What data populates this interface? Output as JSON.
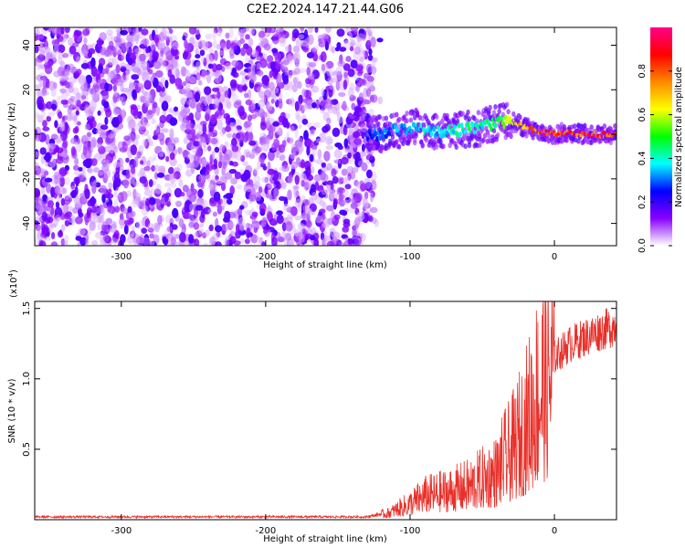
{
  "title": "C2E2.2024.147.21.44.G06",
  "chart_data": [
    {
      "type": "heatmap",
      "description_source": "top panel (spectrogram of occultation signal)",
      "xlabel": "Height of straight line (km)",
      "ylabel": "Frequency (Hz)",
      "xlim": [
        -360,
        43
      ],
      "ylim": [
        -50,
        48
      ],
      "x_ticks": [
        -300,
        -200,
        -100,
        0
      ],
      "y_ticks": [
        -40,
        -20,
        0,
        20,
        40
      ],
      "colorbar": {
        "label": "Normalized spectral amplitude",
        "range": [
          0.0,
          1.0
        ],
        "ticks": [
          0.0,
          0.2,
          0.4,
          0.6,
          0.8
        ],
        "colors": [
          "#ffffff",
          "#8800ff",
          "#0000ff",
          "#00ffff",
          "#00ff00",
          "#ffff00",
          "#ff8800",
          "#ff0000",
          "#ff0088"
        ]
      },
      "noise_region_x": [
        -360,
        -125
      ],
      "signal_ridge": {
        "x": [
          -130,
          -110,
          -95,
          -80,
          -65,
          -50,
          -40,
          -30,
          -20,
          -10,
          0,
          10,
          20,
          30,
          43
        ],
        "frequency": [
          -1,
          2,
          3,
          1,
          2,
          3,
          5,
          6,
          3,
          1,
          0,
          1,
          0,
          0,
          0
        ],
        "amplitude": [
          0.3,
          0.35,
          0.4,
          0.4,
          0.45,
          0.45,
          0.5,
          0.65,
          0.8,
          0.9,
          0.95,
          0.9,
          0.95,
          0.95,
          0.9
        ]
      }
    },
    {
      "type": "line",
      "description_source": "bottom panel",
      "xlabel": "Height of straight line (km)",
      "ylabel": "SNR (10 * v/v)",
      "y_multiplier": "(x10^4)",
      "y_multiplier_base": "(x10",
      "y_multiplier_exp": "4",
      "y_multiplier_close": ")",
      "xlim": [
        -360,
        43
      ],
      "ylim": [
        0,
        1.55
      ],
      "x_ticks": [
        -300,
        -200,
        -100,
        0
      ],
      "y_ticks": [
        0.5,
        1.0,
        1.5
      ],
      "y_tick_labels": [
        "0.5",
        "1.0",
        "1.5"
      ],
      "series": [
        {
          "color": "#e8302a",
          "x": [
            -360,
            -300,
            -200,
            -130,
            -115,
            -100,
            -90,
            -80,
            -70,
            -60,
            -50,
            -40,
            -35,
            -30,
            -25,
            -20,
            -15,
            -10,
            -5,
            0,
            10,
            20,
            30,
            43
          ],
          "y": [
            0.02,
            0.02,
            0.02,
            0.02,
            0.05,
            0.12,
            0.18,
            0.2,
            0.22,
            0.25,
            0.3,
            0.35,
            0.45,
            0.5,
            0.6,
            0.7,
            0.85,
            1.0,
            1.1,
            1.25,
            1.35,
            1.4,
            1.45,
            1.5
          ]
        }
      ]
    }
  ]
}
